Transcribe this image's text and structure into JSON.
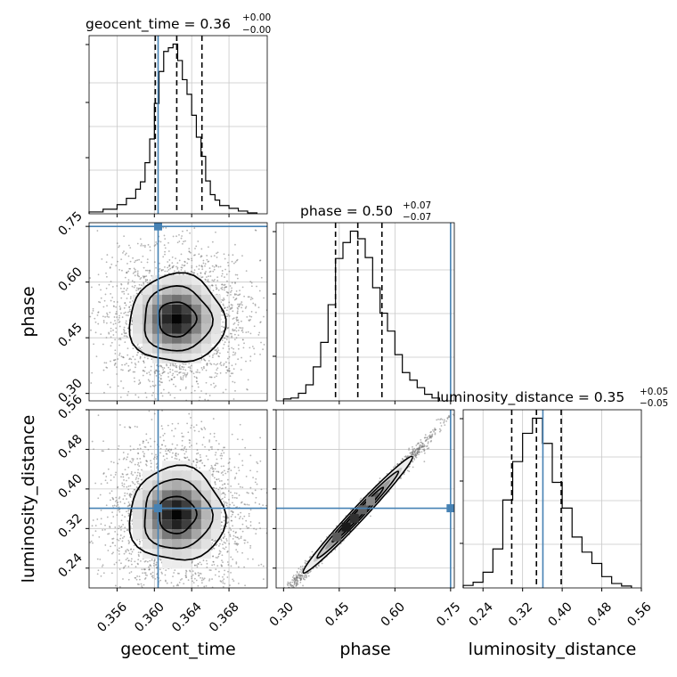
{
  "chart_data": {
    "type": "corner",
    "parameters": [
      "geocent_time",
      "phase",
      "luminosity_distance"
    ],
    "axis_labels": {
      "geocent_time": "geocent_time",
      "phase": "phase",
      "luminosity_distance": "luminosity_distance"
    },
    "truths": {
      "geocent_time": 0.3604,
      "phase": 0.75,
      "luminosity_distance": 0.361
    },
    "truth_color": "#4682b4",
    "quantiles": {
      "geocent_time": [
        0.3601,
        0.3624,
        0.3651
      ],
      "phase": [
        0.44,
        0.5,
        0.565
      ],
      "luminosity_distance": [
        0.298,
        0.348,
        0.398
      ]
    },
    "titles": {
      "geocent_time": {
        "prefix": "geocent_time = ",
        "value": "0.36",
        "plus": "+0.00",
        "minus": "−0.00"
      },
      "phase": {
        "prefix": "phase = ",
        "value": "0.50",
        "plus": "+0.07",
        "minus": "−0.07"
      },
      "luminosity_distance": {
        "prefix": "luminosity_distance = ",
        "value": "0.35",
        "plus": "+0.05",
        "minus": "−0.05"
      }
    },
    "ranges": {
      "geocent_time": [
        0.353,
        0.3721
      ],
      "phase": [
        0.28,
        0.76
      ],
      "luminosity_distance": [
        0.2,
        0.56
      ]
    },
    "ticks": {
      "geocent_time": [
        0.356,
        0.36,
        0.364,
        0.368
      ],
      "geocent_time_labels": [
        "0.356",
        "0.360",
        "0.364",
        "0.368"
      ],
      "phase": [
        0.3,
        0.45,
        0.6,
        0.75
      ],
      "phase_labels": [
        "0.30",
        "0.45",
        "0.60",
        "0.75"
      ],
      "luminosity_distance": [
        0.24,
        0.32,
        0.4,
        0.48,
        0.56
      ],
      "luminosity_distance_labels": [
        "0.24",
        "0.32",
        "0.40",
        "0.48",
        "0.56"
      ]
    },
    "histograms": {
      "geocent_time": {
        "bin_edges": [
          0.353,
          0.3545,
          0.356,
          0.357,
          0.358,
          0.3585,
          0.359,
          0.3595,
          0.36,
          0.3605,
          0.361,
          0.3615,
          0.362,
          0.3625,
          0.363,
          0.3635,
          0.364,
          0.3645,
          0.365,
          0.3655,
          0.366,
          0.3665,
          0.367,
          0.368,
          0.369,
          0.37,
          0.371
        ],
        "counts": [
          2,
          5,
          10,
          17,
          27,
          35,
          56,
          82,
          121,
          156,
          178,
          182,
          186,
          168,
          147,
          131,
          108,
          84,
          63,
          36,
          21,
          15,
          9,
          6,
          3,
          1
        ]
      },
      "phase": {
        "bin_edges": [
          0.3,
          0.32,
          0.34,
          0.36,
          0.38,
          0.4,
          0.42,
          0.44,
          0.46,
          0.48,
          0.5,
          0.52,
          0.54,
          0.56,
          0.58,
          0.6,
          0.62,
          0.64,
          0.66,
          0.68,
          0.7,
          0.72
        ],
        "counts": [
          2,
          3,
          8,
          17,
          36,
          62,
          102,
          151,
          168,
          180,
          172,
          152,
          120,
          93,
          74,
          49,
          30,
          22,
          14,
          7,
          3
        ]
      },
      "luminosity_distance": {
        "bin_edges": [
          0.2,
          0.22,
          0.24,
          0.26,
          0.28,
          0.3,
          0.32,
          0.34,
          0.36,
          0.38,
          0.4,
          0.42,
          0.44,
          0.46,
          0.48,
          0.5,
          0.52,
          0.54
        ],
        "counts": [
          4,
          9,
          25,
          62,
          140,
          201,
          246,
          270,
          230,
          168,
          127,
          81,
          57,
          39,
          18,
          7,
          3
        ]
      }
    },
    "correlations": {
      "phase_vs_geocent_time": 0.0,
      "luminosity_distance_vs_geocent_time": 0.0,
      "luminosity_distance_vs_phase": 0.97
    },
    "grid": true
  }
}
